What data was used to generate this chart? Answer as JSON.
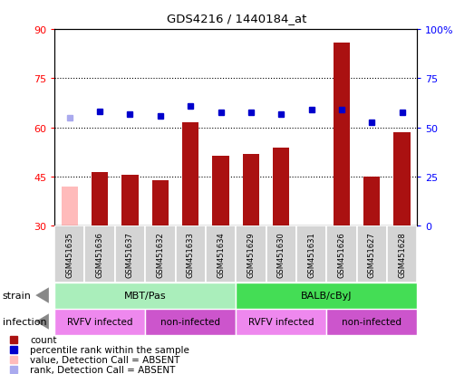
{
  "title": "GDS4216 / 1440184_at",
  "samples": [
    "GSM451635",
    "GSM451636",
    "GSM451637",
    "GSM451632",
    "GSM451633",
    "GSM451634",
    "GSM451629",
    "GSM451630",
    "GSM451631",
    "GSM451626",
    "GSM451627",
    "GSM451628"
  ],
  "count_values": [
    null,
    46.5,
    45.5,
    44.0,
    61.5,
    51.5,
    52.0,
    54.0,
    null,
    86.0,
    45.0,
    58.5
  ],
  "count_absent": [
    42.0,
    null,
    null,
    null,
    null,
    null,
    null,
    null,
    null,
    null,
    null,
    null
  ],
  "percentile_values": [
    null,
    65.0,
    64.0,
    63.5,
    66.5,
    64.5,
    64.5,
    64.0,
    65.5,
    65.5,
    61.5,
    64.5
  ],
  "percentile_absent": [
    63.0,
    null,
    null,
    null,
    null,
    null,
    null,
    null,
    null,
    null,
    null,
    null
  ],
  "ylim_left": [
    30,
    90
  ],
  "ylim_right": [
    0,
    100
  ],
  "yticks_left": [
    30,
    45,
    60,
    75,
    90
  ],
  "yticks_right": [
    0,
    25,
    50,
    75,
    100
  ],
  "ytick_labels_right": [
    "0",
    "25",
    "50",
    "75",
    "100%"
  ],
  "bar_color": "#aa1111",
  "bar_absent_color": "#ffbbbb",
  "dot_color": "#0000cc",
  "dot_absent_color": "#aaaaee",
  "strain_labels": [
    {
      "label": "MBT/Pas",
      "start": 0,
      "end": 6
    },
    {
      "label": "BALB/cByJ",
      "start": 6,
      "end": 12
    }
  ],
  "infection_labels": [
    {
      "label": "RVFV infected",
      "start": 0,
      "end": 3,
      "color": "#ee88ee"
    },
    {
      "label": "non-infected",
      "start": 3,
      "end": 6,
      "color": "#cc55cc"
    },
    {
      "label": "RVFV infected",
      "start": 6,
      "end": 9,
      "color": "#ee88ee"
    },
    {
      "label": "non-infected",
      "start": 9,
      "end": 12,
      "color": "#cc55cc"
    }
  ],
  "strain_color_mbt": "#aaeebb",
  "strain_color_balb": "#44dd55",
  "grid_color": "#000000",
  "bg_color": "#ffffff",
  "legend_items": [
    {
      "color": "#aa1111",
      "label": "count"
    },
    {
      "color": "#0000cc",
      "label": "percentile rank within the sample"
    },
    {
      "color": "#ffbbbb",
      "label": "value, Detection Call = ABSENT"
    },
    {
      "color": "#aaaaee",
      "label": "rank, Detection Call = ABSENT"
    }
  ]
}
